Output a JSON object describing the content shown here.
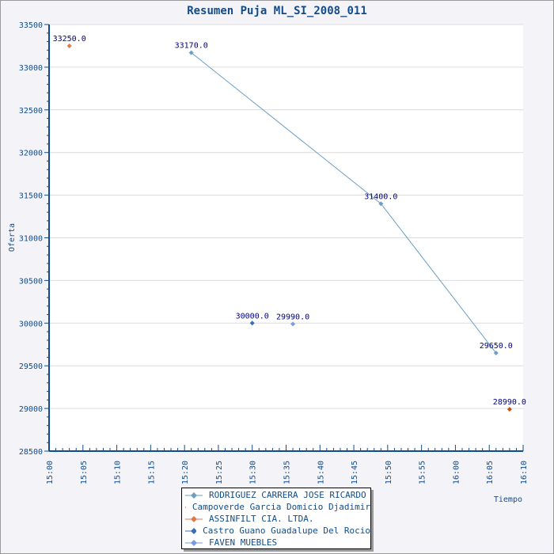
{
  "chart_data": {
    "type": "scatter",
    "title": "Resumen Puja ML_SI_2008_011",
    "xlabel": "Tiempo",
    "ylabel": "Oferta",
    "ylim": [
      28500,
      33500
    ],
    "xlim_minutes_from_1500": [
      0,
      70
    ],
    "yticks": [
      "28500",
      "29000",
      "29500",
      "30000",
      "30500",
      "31000",
      "31500",
      "32000",
      "32500",
      "33000",
      "33500"
    ],
    "xticks": [
      "15:00",
      "15:05",
      "15:10",
      "15:15",
      "15:20",
      "15:25",
      "15:30",
      "15:35",
      "15:40",
      "15:45",
      "15:50",
      "15:55",
      "16:00",
      "16:05",
      "16:10"
    ],
    "grid": "horizontal",
    "legend_position": "bottom-center",
    "series": [
      {
        "name": "RODRIGUEZ CARRERA JOSE RICARDO",
        "color": "#6b9fc6",
        "line": true,
        "points": [
          {
            "t": "15:21",
            "y": 33170,
            "label": "33170.0"
          },
          {
            "t": "15:49",
            "y": 31400,
            "label": "31400.0"
          },
          {
            "t": "16:06",
            "y": 29650,
            "label": "29650.0"
          }
        ]
      },
      {
        "name": "Campoverde Garcia Domicio Djadimir",
        "color": "#c8500e",
        "line": false,
        "points": [
          {
            "t": "16:08",
            "y": 28990,
            "label": "28990.0"
          }
        ]
      },
      {
        "name": "ASSINFILT CIA. LTDA.",
        "color": "#e07a4c",
        "line": false,
        "points": [
          {
            "t": "15:03",
            "y": 33250,
            "label": "33250.0"
          }
        ]
      },
      {
        "name": "Castro Guano Guadalupe Del Rocio",
        "color": "#3a6fb5",
        "line": false,
        "points": [
          {
            "t": "15:30",
            "y": 30000,
            "label": "30000.0"
          }
        ]
      },
      {
        "name": "FAVEN MUEBLES",
        "color": "#7a9be2",
        "line": false,
        "points": [
          {
            "t": "15:36",
            "y": 29990,
            "label": "29990.0"
          }
        ]
      }
    ]
  }
}
